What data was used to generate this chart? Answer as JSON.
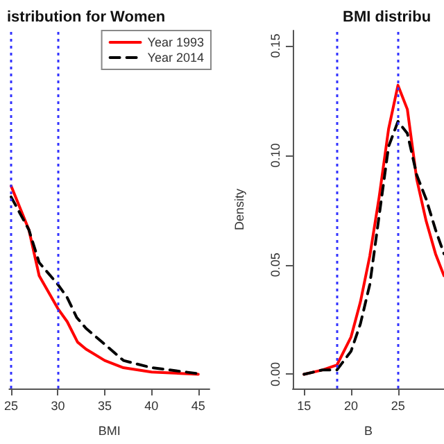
{
  "chart_data": [
    {
      "type": "line",
      "title": "istribution for Women",
      "xlabel": "BMI",
      "xlim": [
        24.8,
        46.2
      ],
      "xticks": [
        25,
        30,
        35,
        40,
        45
      ],
      "ylim": [
        -0.0065,
        0.157
      ],
      "tick_labels": "x",
      "grid": false,
      "legend": "top right",
      "marker": "none",
      "ref_lines": [
        {
          "axis": "x",
          "value": 25,
          "color": "#3333ff",
          "line_style": "dotted"
        },
        {
          "axis": "x",
          "value": 30,
          "color": "#3333ff",
          "line_style": "dotted"
        }
      ],
      "series": [
        {
          "name": "Year 1993",
          "color": "#ff0000",
          "line_style": "solid",
          "x": [
            25,
            26.9,
            28,
            30,
            31,
            32.1,
            33,
            35,
            37,
            40,
            45
          ],
          "values": [
            0.086,
            0.066,
            0.045,
            0.03,
            0.024,
            0.0147,
            0.0115,
            0.0063,
            0.003,
            0.001,
            0
          ]
        },
        {
          "name": "Year 2014",
          "color": "#000000",
          "line_style": "dashed",
          "x": [
            25,
            26.9,
            28,
            30,
            31,
            32,
            33,
            35,
            37,
            40,
            45
          ],
          "values": [
            0.081,
            0.066,
            0.051,
            0.041,
            0.035,
            0.026,
            0.021,
            0.0137,
            0.0063,
            0.003,
            0.0003
          ]
        }
      ]
    },
    {
      "type": "line",
      "title": "BMI distribu",
      "xlabel": "B",
      "ylabel": "Density",
      "xlim": [
        13.8,
        29.9
      ],
      "xticks": [
        15,
        20,
        25
      ],
      "ylim": [
        -0.0065,
        0.157
      ],
      "yticks": [
        {
          "value": 0,
          "label": "0.00"
        },
        {
          "value": 0.05,
          "label": "0.05"
        },
        {
          "value": 0.1,
          "label": "0.10"
        },
        {
          "value": 0.15,
          "label": "0.15"
        }
      ],
      "grid": false,
      "marker": "none",
      "ref_lines": [
        {
          "axis": "x",
          "value": 18.5,
          "color": "#3333ff",
          "line_style": "dotted"
        },
        {
          "axis": "x",
          "value": 25,
          "color": "#3333ff",
          "line_style": "dotted"
        }
      ],
      "series": [
        {
          "color": "#ff0000",
          "line_style": "solid",
          "x": [
            15,
            16,
            17,
            18.5,
            20,
            21,
            22,
            23,
            24,
            25,
            26,
            27,
            28,
            29,
            29.9
          ],
          "values": [
            0,
            0.001,
            0.002,
            0.0042,
            0.017,
            0.033,
            0.054,
            0.081,
            0.112,
            0.132,
            0.121,
            0.089,
            0.07,
            0.055,
            0.045
          ]
        },
        {
          "color": "#000000",
          "line_style": "dashed",
          "x": [
            15,
            16,
            17,
            18.5,
            20,
            21,
            22,
            23,
            24,
            25,
            26,
            27,
            28,
            29,
            29.9
          ],
          "values": [
            0,
            0.001,
            0.002,
            0.002,
            0.0105,
            0.023,
            0.041,
            0.0725,
            0.104,
            0.1155,
            0.11,
            0.091,
            0.08,
            0.066,
            0.055
          ]
        }
      ]
    }
  ]
}
